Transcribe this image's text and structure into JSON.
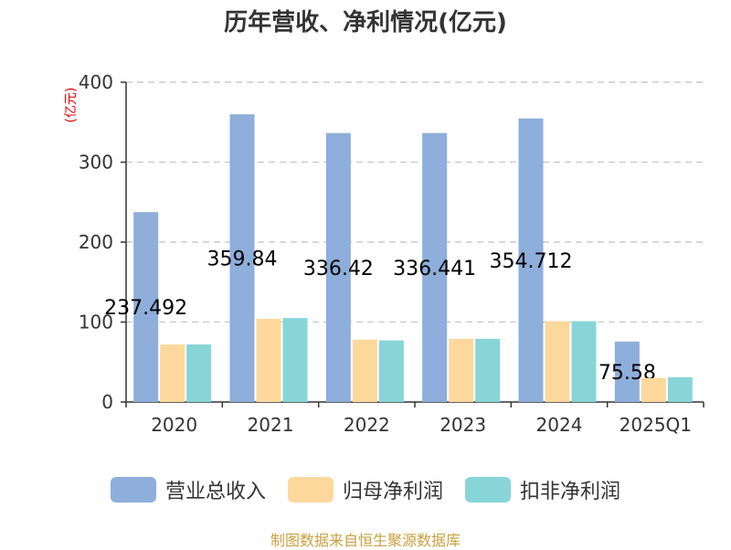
{
  "chart_data": {
    "type": "bar",
    "title": "历年营收、净利情况(亿元)",
    "ylabel": "(亿元)",
    "xlabel": "",
    "categories": [
      "2020",
      "2021",
      "2022",
      "2023",
      "2024",
      "2025Q1"
    ],
    "ylim": [
      0,
      400
    ],
    "yticks": [
      0,
      100,
      200,
      300,
      400
    ],
    "grid": true,
    "legend_position": "bottom",
    "series": [
      {
        "name": "营业总收入",
        "color": "#8eaedb",
        "values": [
          237.492,
          359.84,
          336.42,
          336.441,
          354.712,
          75.58
        ],
        "labels": [
          "237.492",
          "359.84",
          "336.42",
          "336.441",
          "354.712",
          "75.58"
        ]
      },
      {
        "name": "归母净利润",
        "color": "#fdd89c",
        "values": [
          72,
          104,
          78,
          79,
          101,
          30
        ]
      },
      {
        "name": "扣非净利润",
        "color": "#88d5d8",
        "values": [
          72,
          105,
          77,
          79,
          101,
          31
        ]
      }
    ]
  },
  "source": "制图数据来自恒生聚源数据库"
}
